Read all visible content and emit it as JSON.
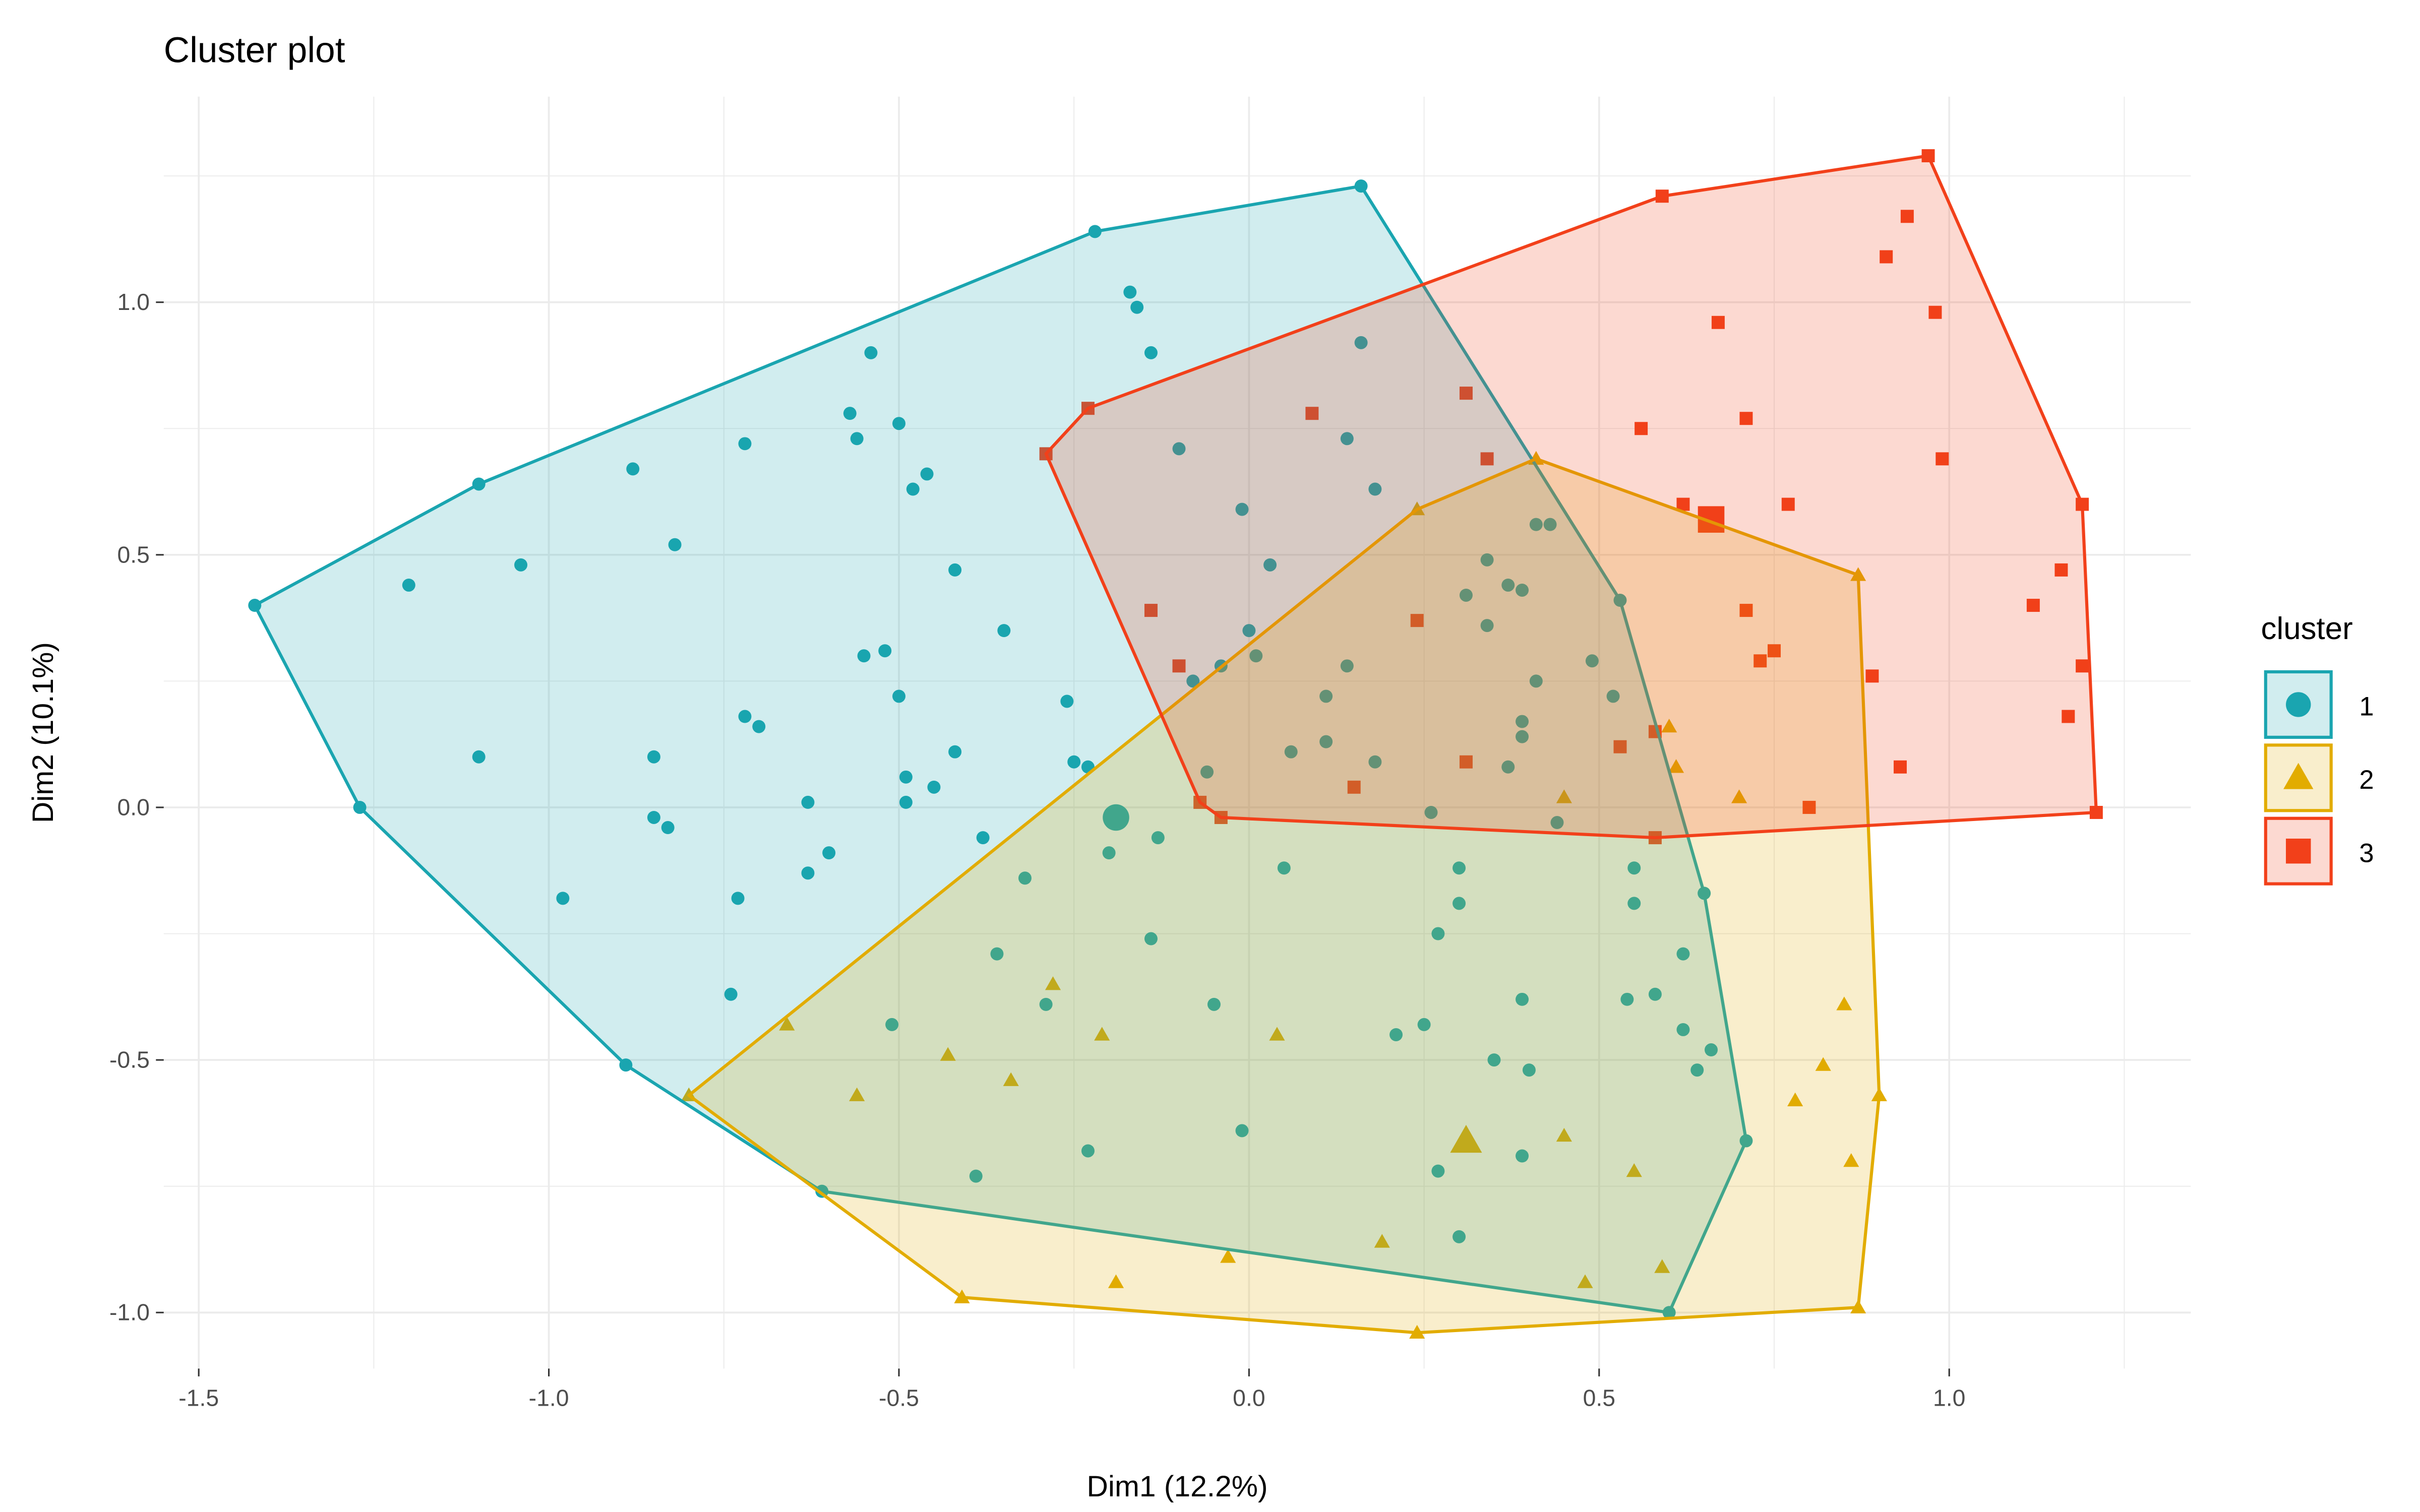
{
  "chart_data": {
    "type": "scatter",
    "title": "Cluster plot",
    "xlabel": "Dim1 (12.2%)",
    "ylabel": "Dim2 (10.1%)",
    "xlim": [
      -1.55,
      1.345
    ],
    "ylim": [
      -1.111,
      1.407
    ],
    "xticks": [
      -1.5,
      -1.0,
      -0.5,
      0.0,
      0.5,
      1.0
    ],
    "xtick_labels": [
      "-1.5",
      "-1.0",
      "-0.5",
      "0.0",
      "0.5",
      "1.0"
    ],
    "yticks": [
      -1.0,
      -0.5,
      0.0,
      0.5,
      1.0
    ],
    "ytick_labels": [
      "-1.0",
      "-0.5",
      "0.0",
      "0.5",
      "1.0"
    ],
    "grid": true,
    "legend": {
      "title": "cluster",
      "placement": "right",
      "entries": [
        "1",
        "2",
        "3"
      ]
    },
    "clusters": [
      {
        "name": "1",
        "color": "#1AA5B0",
        "shape": "circle",
        "center": [
          -0.19,
          -0.02
        ],
        "hull": [
          [
            -1.42,
            0.4
          ],
          [
            -1.1,
            0.64
          ],
          [
            -0.22,
            1.14
          ],
          [
            0.16,
            1.23
          ],
          [
            0.53,
            0.41
          ],
          [
            0.65,
            -0.17
          ],
          [
            0.71,
            -0.66
          ],
          [
            0.6,
            -1.0
          ],
          [
            -0.61,
            -0.76
          ],
          [
            -0.89,
            -0.51
          ],
          [
            -1.27,
            0.0
          ]
        ],
        "points": [
          [
            -1.2,
            0.44
          ],
          [
            -1.04,
            0.48
          ],
          [
            -0.88,
            0.67
          ],
          [
            -0.82,
            0.52
          ],
          [
            -0.72,
            0.72
          ],
          [
            -1.1,
            0.1
          ],
          [
            -0.85,
            0.1
          ],
          [
            -0.98,
            -0.18
          ],
          [
            -0.85,
            -0.02
          ],
          [
            -0.83,
            -0.04
          ],
          [
            -0.72,
            0.18
          ],
          [
            -0.7,
            0.16
          ],
          [
            -0.73,
            -0.18
          ],
          [
            -0.74,
            -0.37
          ],
          [
            -0.57,
            0.78
          ],
          [
            -0.56,
            0.73
          ],
          [
            -0.54,
            0.9
          ],
          [
            -0.5,
            0.76
          ],
          [
            -0.48,
            0.63
          ],
          [
            -0.46,
            0.66
          ],
          [
            -0.55,
            0.3
          ],
          [
            -0.52,
            0.31
          ],
          [
            -0.5,
            0.22
          ],
          [
            -0.42,
            0.47
          ],
          [
            -0.35,
            0.35
          ],
          [
            -0.49,
            0.06
          ],
          [
            -0.45,
            0.04
          ],
          [
            -0.42,
            0.11
          ],
          [
            -0.49,
            0.01
          ],
          [
            -0.63,
            0.01
          ],
          [
            -0.63,
            -0.13
          ],
          [
            -0.6,
            -0.09
          ],
          [
            -0.51,
            -0.43
          ],
          [
            -0.38,
            -0.06
          ],
          [
            -0.32,
            -0.14
          ],
          [
            -0.36,
            -0.29
          ],
          [
            -0.29,
            -0.39
          ],
          [
            -0.39,
            -0.73
          ],
          [
            -0.26,
            0.21
          ],
          [
            -0.25,
            0.09
          ],
          [
            -0.23,
            0.08
          ],
          [
            -0.2,
            -0.09
          ],
          [
            -0.13,
            -0.06
          ],
          [
            -0.14,
            -0.26
          ],
          [
            -0.17,
            1.02
          ],
          [
            -0.16,
            0.99
          ],
          [
            -0.14,
            0.9
          ],
          [
            -0.1,
            0.71
          ],
          [
            -0.05,
            -0.39
          ],
          [
            -0.01,
            -0.64
          ],
          [
            -0.23,
            -0.68
          ],
          [
            -0.01,
            0.59
          ],
          [
            0.03,
            0.48
          ],
          [
            0.0,
            0.35
          ],
          [
            0.01,
            0.3
          ],
          [
            -0.04,
            0.28
          ],
          [
            -0.08,
            0.25
          ],
          [
            -0.06,
            0.07
          ],
          [
            0.06,
            0.11
          ],
          [
            0.05,
            -0.12
          ],
          [
            0.11,
            0.22
          ],
          [
            0.11,
            0.13
          ],
          [
            0.14,
            0.28
          ],
          [
            0.16,
            0.92
          ],
          [
            0.14,
            0.73
          ],
          [
            0.18,
            0.63
          ],
          [
            0.18,
            0.09
          ],
          [
            0.21,
            -0.45
          ],
          [
            0.25,
            -0.43
          ],
          [
            0.27,
            -0.25
          ],
          [
            0.26,
            -0.01
          ],
          [
            0.3,
            -0.12
          ],
          [
            0.3,
            -0.19
          ],
          [
            0.31,
            0.42
          ],
          [
            0.34,
            0.49
          ],
          [
            0.34,
            0.36
          ],
          [
            0.37,
            0.44
          ],
          [
            0.39,
            0.43
          ],
          [
            0.39,
            0.17
          ],
          [
            0.39,
            0.14
          ],
          [
            0.37,
            0.08
          ],
          [
            0.39,
            -0.38
          ],
          [
            0.4,
            -0.52
          ],
          [
            0.39,
            -0.69
          ],
          [
            0.41,
            0.25
          ],
          [
            0.41,
            0.56
          ],
          [
            0.43,
            0.56
          ],
          [
            0.49,
            0.29
          ],
          [
            0.52,
            0.22
          ],
          [
            0.55,
            -0.12
          ],
          [
            0.55,
            -0.19
          ],
          [
            0.54,
            -0.38
          ],
          [
            0.58,
            -0.37
          ],
          [
            0.62,
            -0.29
          ],
          [
            0.62,
            -0.44
          ],
          [
            0.66,
            -0.48
          ],
          [
            0.64,
            -0.52
          ],
          [
            0.44,
            -0.03
          ],
          [
            0.27,
            -0.72
          ],
          [
            0.3,
            -0.85
          ],
          [
            0.35,
            -0.5
          ]
        ]
      },
      {
        "name": "2",
        "color": "#E2AC00",
        "shape": "triangle",
        "center": [
          0.31,
          -0.66
        ],
        "hull": [
          [
            -0.8,
            -0.57
          ],
          [
            -0.41,
            -0.97
          ],
          [
            0.24,
            -1.04
          ],
          [
            0.87,
            -0.99
          ],
          [
            0.9,
            -0.57
          ],
          [
            0.87,
            0.46
          ],
          [
            0.41,
            0.69
          ],
          [
            0.24,
            0.59
          ]
        ],
        "points": [
          [
            -0.66,
            -0.43
          ],
          [
            -0.56,
            -0.57
          ],
          [
            -0.43,
            -0.49
          ],
          [
            -0.34,
            -0.54
          ],
          [
            -0.28,
            -0.35
          ],
          [
            -0.21,
            -0.45
          ],
          [
            -0.19,
            -0.94
          ],
          [
            -0.03,
            -0.89
          ],
          [
            0.04,
            -0.45
          ],
          [
            0.19,
            -0.86
          ],
          [
            0.48,
            -0.94
          ],
          [
            0.45,
            -0.65
          ],
          [
            0.55,
            -0.72
          ],
          [
            0.59,
            -0.91
          ],
          [
            0.45,
            0.02
          ],
          [
            0.6,
            0.16
          ],
          [
            0.61,
            0.08
          ],
          [
            0.7,
            0.02
          ],
          [
            0.85,
            -0.39
          ],
          [
            0.82,
            -0.51
          ],
          [
            0.78,
            -0.58
          ],
          [
            0.86,
            -0.7
          ]
        ]
      },
      {
        "name": "3",
        "color": "#F2401A",
        "shape": "square",
        "center": [
          0.66,
          0.57
        ],
        "hull": [
          [
            -0.29,
            0.7
          ],
          [
            -0.23,
            0.79
          ],
          [
            0.59,
            1.21
          ],
          [
            0.97,
            1.29
          ],
          [
            1.19,
            0.6
          ],
          [
            1.21,
            -0.01
          ],
          [
            0.58,
            -0.06
          ],
          [
            -0.04,
            -0.02
          ],
          [
            -0.07,
            0.01
          ]
        ],
        "points": [
          [
            -0.14,
            0.39
          ],
          [
            -0.1,
            0.28
          ],
          [
            0.09,
            0.78
          ],
          [
            0.31,
            0.82
          ],
          [
            0.34,
            0.69
          ],
          [
            0.24,
            0.37
          ],
          [
            0.31,
            0.09
          ],
          [
            0.15,
            0.04
          ],
          [
            0.56,
            0.75
          ],
          [
            0.67,
            0.96
          ],
          [
            0.71,
            0.77
          ],
          [
            0.62,
            0.6
          ],
          [
            0.77,
            0.6
          ],
          [
            0.71,
            0.39
          ],
          [
            0.73,
            0.29
          ],
          [
            0.75,
            0.31
          ],
          [
            0.53,
            0.12
          ],
          [
            0.58,
            0.15
          ],
          [
            0.91,
            1.09
          ],
          [
            0.94,
            1.17
          ],
          [
            0.98,
            0.98
          ],
          [
            0.99,
            0.69
          ],
          [
            1.12,
            0.4
          ],
          [
            1.16,
            0.47
          ],
          [
            1.19,
            0.28
          ],
          [
            1.17,
            0.18
          ],
          [
            0.93,
            0.08
          ],
          [
            0.89,
            0.26
          ],
          [
            0.8,
            0.0
          ]
        ]
      }
    ]
  }
}
